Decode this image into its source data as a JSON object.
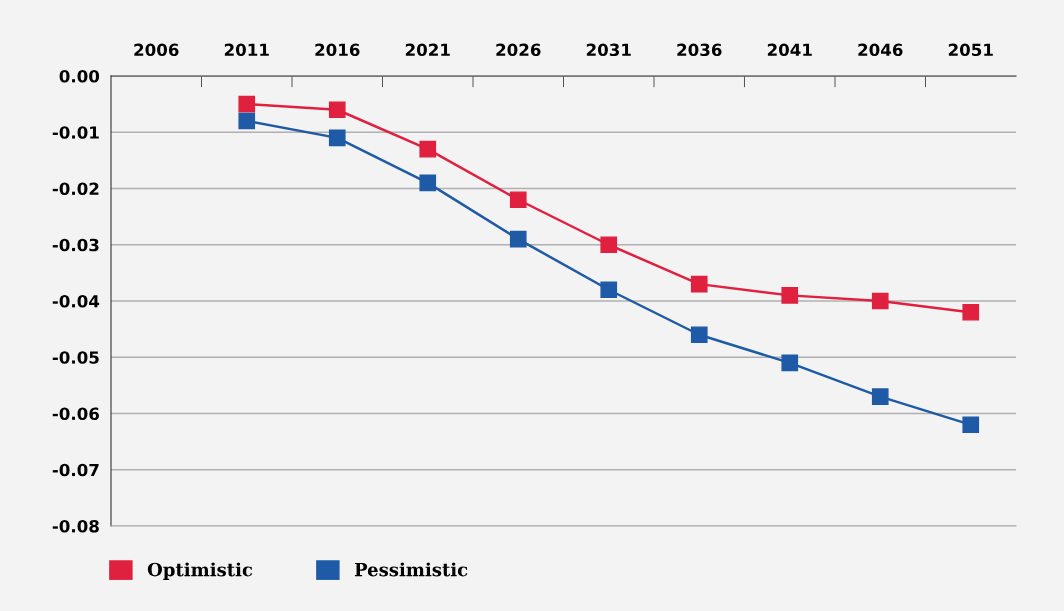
{
  "chart_data": {
    "type": "line",
    "categories": [
      "2006",
      "2011",
      "2016",
      "2021",
      "2026",
      "2031",
      "2036",
      "2041",
      "2046",
      "2051"
    ],
    "series": [
      {
        "name": "Optimistic",
        "color": "#e0203f",
        "values": [
          null,
          -0.005,
          -0.006,
          -0.013,
          -0.022,
          -0.03,
          -0.037,
          -0.039,
          -0.04,
          -0.042
        ]
      },
      {
        "name": "Pessimistic",
        "color": "#1f5aa6",
        "values": [
          null,
          -0.008,
          -0.011,
          -0.019,
          -0.029,
          -0.038,
          -0.046,
          -0.051,
          -0.057,
          -0.062
        ]
      }
    ],
    "ylim": [
      -0.08,
      0
    ],
    "yticks": [
      {
        "value": 0,
        "label": "0.00"
      },
      -0.01,
      -0.02,
      -0.03,
      -0.04,
      -0.05,
      -0.06,
      -0.07,
      -0.08
    ],
    "grid": "y",
    "legend": "bottom left",
    "marker": "square",
    "line_style": "solid"
  }
}
